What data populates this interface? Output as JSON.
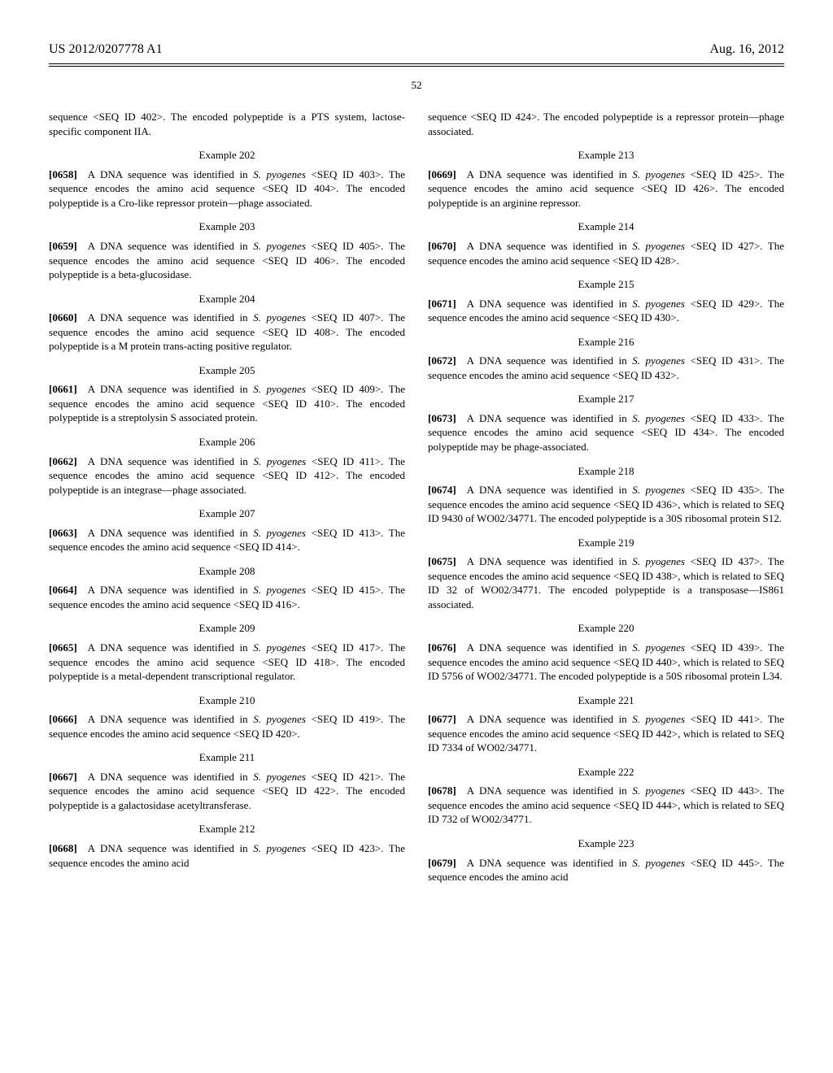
{
  "header": {
    "left": "US 2012/0207778 A1",
    "right": "Aug. 16, 2012"
  },
  "page_number": "52",
  "col_left": {
    "continuation": "sequence <SEQ ID 402>. The encoded polypeptide is a PTS system, lactose-specific component IIA.",
    "examples": [
      {
        "heading": "Example 202",
        "num": "[0658]",
        "text_pre": "A DNA sequence was identified in ",
        "ital": "S. pyogenes",
        "text_post": " <SEQ ID 403>. The sequence encodes the amino acid sequence <SEQ ID 404>. The encoded polypeptide is a Cro-like repressor protein—phage associated."
      },
      {
        "heading": "Example 203",
        "num": "[0659]",
        "text_pre": "A DNA sequence was identified in ",
        "ital": "S. pyogenes",
        "text_post": " <SEQ ID 405>. The sequence encodes the amino acid sequence <SEQ ID 406>. The encoded polypeptide is a beta-glucosidase."
      },
      {
        "heading": "Example 204",
        "num": "[0660]",
        "text_pre": "A DNA sequence was identified in ",
        "ital": "S. pyogenes",
        "text_post": " <SEQ ID 407>. The sequence encodes the amino acid sequence <SEQ ID 408>. The encoded polypeptide is a M protein trans-acting positive regulator."
      },
      {
        "heading": "Example 205",
        "num": "[0661]",
        "text_pre": "A DNA sequence was identified in ",
        "ital": "S. pyogenes",
        "text_post": " <SEQ ID 409>. The sequence encodes the amino acid sequence <SEQ ID 410>. The encoded polypeptide is a streptolysin S associated protein."
      },
      {
        "heading": "Example 206",
        "num": "[0662]",
        "text_pre": "A DNA sequence was identified in ",
        "ital": "S. pyogenes",
        "text_post": " <SEQ ID 411>. The sequence encodes the amino acid sequence <SEQ ID 412>. The encoded polypeptide is an integrase—phage associated."
      },
      {
        "heading": "Example 207",
        "num": "[0663]",
        "text_pre": "A DNA sequence was identified in ",
        "ital": "S. pyogenes",
        "text_post": " <SEQ ID 413>. The sequence encodes the amino acid sequence <SEQ ID 414>."
      },
      {
        "heading": "Example 208",
        "num": "[0664]",
        "text_pre": "A DNA sequence was identified in ",
        "ital": "S. pyogenes",
        "text_post": " <SEQ ID 415>. The sequence encodes the amino acid sequence <SEQ ID 416>."
      },
      {
        "heading": "Example 209",
        "num": "[0665]",
        "text_pre": "A DNA sequence was identified in ",
        "ital": "S. pyogenes",
        "text_post": " <SEQ ID 417>. The sequence encodes the amino acid sequence <SEQ ID 418>. The encoded polypeptide is a metal-dependent transcriptional regulator."
      },
      {
        "heading": "Example 210",
        "num": "[0666]",
        "text_pre": "A DNA sequence was identified in ",
        "ital": "S. pyogenes",
        "text_post": " <SEQ ID 419>. The sequence encodes the amino acid sequence <SEQ ID 420>."
      },
      {
        "heading": "Example 211",
        "num": "[0667]",
        "text_pre": "A DNA sequence was identified in ",
        "ital": "S. pyogenes",
        "text_post": " <SEQ ID 421>. The sequence encodes the amino acid sequence <SEQ ID 422>. The encoded polypeptide is a galactosidase acetyltransferase."
      },
      {
        "heading": "Example 212",
        "num": "[0668]",
        "text_pre": "A DNA sequence was identified in ",
        "ital": "S. pyogenes",
        "text_post": " <SEQ ID 423>. The sequence encodes the amino acid "
      }
    ]
  },
  "col_right": {
    "continuation": "sequence <SEQ ID 424>. The encoded polypeptide is a repressor protein—phage associated.",
    "examples": [
      {
        "heading": "Example 213",
        "num": "[0669]",
        "text_pre": "A DNA sequence was identified in ",
        "ital": "S. pyogenes",
        "text_post": " <SEQ ID 425>. The sequence encodes the amino acid sequence <SEQ ID 426>. The encoded polypeptide is an arginine repressor."
      },
      {
        "heading": "Example 214",
        "num": "[0670]",
        "text_pre": "A DNA sequence was identified in ",
        "ital": "S. pyogenes",
        "text_post": " <SEQ ID 427>. The sequence encodes the amino acid sequence <SEQ ID 428>."
      },
      {
        "heading": "Example 215",
        "num": "[0671]",
        "text_pre": "A DNA sequence was identified in ",
        "ital": "S. pyogenes",
        "text_post": " <SEQ ID 429>. The sequence encodes the amino acid sequence <SEQ ID 430>."
      },
      {
        "heading": "Example 216",
        "num": "[0672]",
        "text_pre": "A DNA sequence was identified in ",
        "ital": "S. pyogenes",
        "text_post": " <SEQ ID 431>. The sequence encodes the amino acid sequence <SEQ ID 432>."
      },
      {
        "heading": "Example 217",
        "num": "[0673]",
        "text_pre": "A DNA sequence was identified in ",
        "ital": "S. pyogenes",
        "text_post": " <SEQ ID 433>. The sequence encodes the amino acid sequence <SEQ ID 434>. The encoded polypeptide may be phage-associated."
      },
      {
        "heading": "Example 218",
        "num": "[0674]",
        "text_pre": "A DNA sequence was identified in ",
        "ital": "S. pyogenes",
        "text_post": " <SEQ ID 435>. The sequence encodes the amino acid sequence <SEQ ID 436>, which is related to SEQ ID 9430 of WO02/34771. The encoded polypeptide is a 30S ribosomal protein S12."
      },
      {
        "heading": "Example 219",
        "num": "[0675]",
        "text_pre": "A DNA sequence was identified in ",
        "ital": "S. pyogenes",
        "text_post": " <SEQ ID 437>. The sequence encodes the amino acid sequence <SEQ ID 438>, which is related to SEQ ID 32 of WO02/34771. The encoded polypeptide is a transposase—IS861 associated."
      },
      {
        "heading": "Example 220",
        "num": "[0676]",
        "text_pre": "A DNA sequence was identified in ",
        "ital": "S. pyogenes",
        "text_post": " <SEQ ID 439>. The sequence encodes the amino acid sequence <SEQ ID 440>, which is related to SEQ ID 5756 of WO02/34771. The encoded polypeptide is a 50S ribosomal protein L34."
      },
      {
        "heading": "Example 221",
        "num": "[0677]",
        "text_pre": "A DNA sequence was identified in ",
        "ital": "S. pyogenes",
        "text_post": " <SEQ ID 441>. The sequence encodes the amino acid sequence <SEQ ID 442>, which is related to SEQ ID 7334 of WO02/34771."
      },
      {
        "heading": "Example 222",
        "num": "[0678]",
        "text_pre": "A DNA sequence was identified in ",
        "ital": "S. pyogenes",
        "text_post": " <SEQ ID 443>. The sequence encodes the amino acid sequence <SEQ ID 444>, which is related to SEQ ID 732 of WO02/34771."
      },
      {
        "heading": "Example 223",
        "num": "[0679]",
        "text_pre": "A DNA sequence was identified in ",
        "ital": "S. pyogenes",
        "text_post": " <SEQ ID 445>. The sequence encodes the amino acid "
      }
    ]
  }
}
